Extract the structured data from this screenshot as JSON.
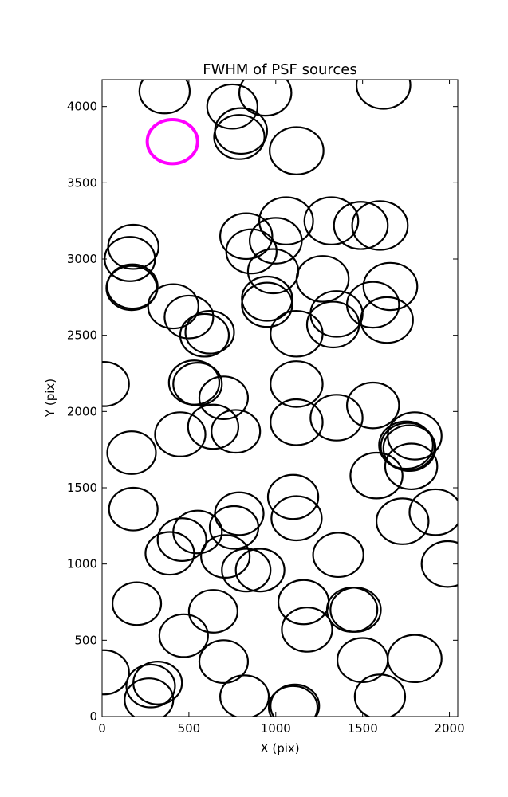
{
  "chart_data": {
    "type": "scatter",
    "title": "FWHM of PSF sources",
    "xlabel": "X (pix)",
    "ylabel": "Y (pix)",
    "xlim": [
      0,
      2048
    ],
    "ylim": [
      0,
      4176
    ],
    "xticks": [
      0,
      500,
      1000,
      1500,
      2000
    ],
    "yticks": [
      0,
      500,
      1000,
      1500,
      2000,
      2500,
      3000,
      3500,
      4000
    ],
    "xtick_labels": [
      "0",
      "500",
      "1000",
      "1500",
      "2000"
    ],
    "ytick_labels": [
      "0",
      "500",
      "1000",
      "1500",
      "2000",
      "2500",
      "3000",
      "3500",
      "4000"
    ],
    "grid": false,
    "marker": "open circle",
    "colors": {
      "default": "#000000",
      "highlight": "#ff00ff"
    },
    "highlight": {
      "x": 405,
      "y": 3770,
      "r": 145
    },
    "series": [
      {
        "points": [
          [
            360,
            4100,
            145
          ],
          [
            750,
            4000,
            145
          ],
          [
            940,
            4090,
            150
          ],
          [
            1620,
            4140,
            155
          ],
          [
            790,
            3800,
            145
          ],
          [
            800,
            3840,
            150
          ],
          [
            1120,
            3710,
            155
          ],
          [
            160,
            3000,
            145
          ],
          [
            180,
            3080,
            145
          ],
          [
            175,
            2820,
            145
          ],
          [
            170,
            2810,
            145
          ],
          [
            830,
            3150,
            150
          ],
          [
            860,
            3050,
            145
          ],
          [
            1000,
            3120,
            150
          ],
          [
            1060,
            3250,
            155
          ],
          [
            1320,
            3250,
            155
          ],
          [
            1490,
            3220,
            155
          ],
          [
            1600,
            3220,
            160
          ],
          [
            985,
            2920,
            145
          ],
          [
            1270,
            2870,
            150
          ],
          [
            1660,
            2820,
            155
          ],
          [
            410,
            2690,
            145
          ],
          [
            500,
            2620,
            140
          ],
          [
            590,
            2500,
            140
          ],
          [
            620,
            2520,
            140
          ],
          [
            950,
            2700,
            145
          ],
          [
            950,
            2740,
            145
          ],
          [
            1120,
            2510,
            150
          ],
          [
            1330,
            2570,
            150
          ],
          [
            1350,
            2640,
            150
          ],
          [
            1560,
            2700,
            150
          ],
          [
            1640,
            2600,
            150
          ],
          [
            10,
            2180,
            145
          ],
          [
            530,
            2190,
            145
          ],
          [
            550,
            2180,
            140
          ],
          [
            700,
            2090,
            140
          ],
          [
            1120,
            2180,
            150
          ],
          [
            1560,
            2040,
            150
          ],
          [
            1350,
            1960,
            150
          ],
          [
            1120,
            1930,
            150
          ],
          [
            450,
            1850,
            145
          ],
          [
            640,
            1900,
            145
          ],
          [
            770,
            1870,
            140
          ],
          [
            1800,
            1840,
            155
          ],
          [
            1750,
            1780,
            155
          ],
          [
            1760,
            1770,
            155
          ],
          [
            1770,
            1760,
            150
          ],
          [
            1780,
            1640,
            150
          ],
          [
            1580,
            1580,
            150
          ],
          [
            170,
            1730,
            140
          ],
          [
            180,
            1360,
            140
          ],
          [
            1100,
            1440,
            145
          ],
          [
            1120,
            1300,
            145
          ],
          [
            790,
            1330,
            140
          ],
          [
            760,
            1240,
            140
          ],
          [
            550,
            1210,
            140
          ],
          [
            460,
            1160,
            140
          ],
          [
            390,
            1070,
            140
          ],
          [
            710,
            1050,
            140
          ],
          [
            830,
            960,
            140
          ],
          [
            910,
            960,
            140
          ],
          [
            1730,
            1280,
            150
          ],
          [
            1920,
            1340,
            150
          ],
          [
            1990,
            1000,
            150
          ],
          [
            1360,
            1060,
            145
          ],
          [
            200,
            740,
            140
          ],
          [
            640,
            690,
            140
          ],
          [
            470,
            530,
            140
          ],
          [
            700,
            360,
            140
          ],
          [
            1160,
            750,
            145
          ],
          [
            1180,
            570,
            145
          ],
          [
            1440,
            700,
            145
          ],
          [
            1460,
            700,
            145
          ],
          [
            1500,
            370,
            145
          ],
          [
            1800,
            380,
            155
          ],
          [
            10,
            290,
            145
          ],
          [
            280,
            200,
            140
          ],
          [
            320,
            220,
            140
          ],
          [
            270,
            110,
            140
          ],
          [
            820,
            130,
            140
          ],
          [
            1100,
            60,
            140
          ],
          [
            1110,
            70,
            140
          ],
          [
            1600,
            130,
            145
          ]
        ]
      }
    ]
  }
}
